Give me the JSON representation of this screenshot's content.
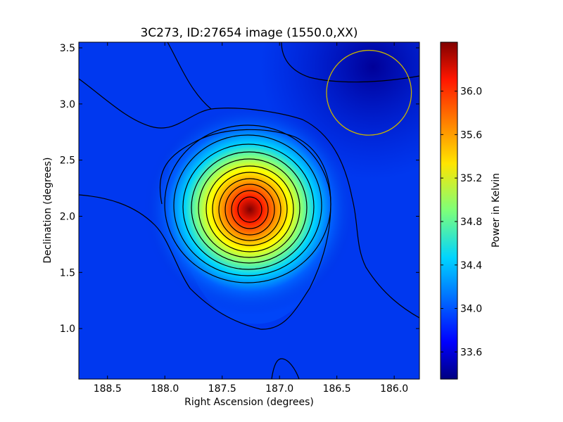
{
  "chart_data": {
    "type": "heatmap",
    "title": "3C273, ID:27654 image (1550.0,XX)",
    "xlabel": "Right Ascension (degrees)",
    "ylabel": "Declination (degrees)",
    "xlim": [
      188.75,
      185.78
    ],
    "ylim": [
      0.55,
      3.55
    ],
    "x_ticks": [
      "188.5",
      "188.0",
      "187.5",
      "187.0",
      "186.5",
      "186.0"
    ],
    "y_ticks": [
      "1.0",
      "1.5",
      "2.0",
      "2.5",
      "3.0",
      "3.5"
    ],
    "colorbar": {
      "label": "Power in Kelvin",
      "range": [
        33.35,
        36.45
      ],
      "ticks": [
        "33.6",
        "34.0",
        "34.4",
        "34.8",
        "35.2",
        "35.6",
        "36.0"
      ]
    },
    "peak": {
      "ra": 187.25,
      "dec": 2.03,
      "value": 36.4
    },
    "background_level": 33.7,
    "contour_count": 14,
    "beam_circle": {
      "ra": 186.22,
      "dec": 3.1,
      "radius_deg": 0.37,
      "color": "#c8b400"
    },
    "colormap": "jet"
  }
}
